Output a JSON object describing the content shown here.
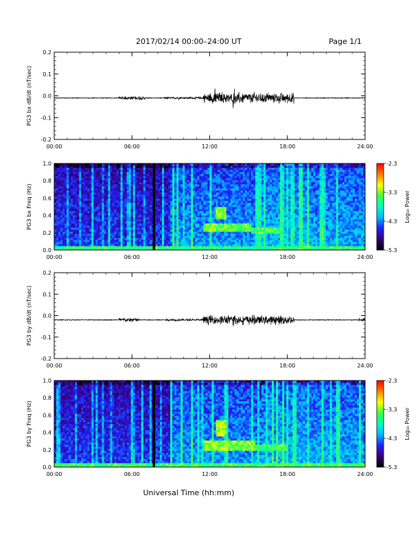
{
  "header": {
    "title": "2017/02/14  00:00–24:00 UT",
    "page": "Page 1/1"
  },
  "footer": {
    "xlabel": "Universal Time (hh:mm)"
  },
  "colorbar": {
    "label": "Log₁₀ Power",
    "ticks": [
      "-2.3",
      "-3.3",
      "-4.3",
      "-5.3"
    ],
    "colors": [
      "#000000",
      "#3a0078",
      "#2020ff",
      "#00b8ff",
      "#00ffc8",
      "#40ff40",
      "#ffff00",
      "#ff8000",
      "#ff0000"
    ]
  },
  "chart_data": [
    {
      "type": "line",
      "ylabel": "PG3 bx dB/dt (nT/sec)",
      "ylim": [
        -0.2,
        0.2
      ],
      "yticks": [
        "0.2",
        "0.1",
        "0.0",
        "-0.1",
        "-0.2"
      ],
      "xlim": [
        0,
        24
      ],
      "xticks": [
        "00:00",
        "06:00",
        "12:00",
        "18:00",
        "24:00"
      ],
      "baseline": -0.01,
      "activity": [
        {
          "x": [
            5.0,
            7.0
          ],
          "amplitude": 0.01
        },
        {
          "x": [
            8.5,
            11.5
          ],
          "amplitude": 0.006
        },
        {
          "x": [
            11.5,
            18.5
          ],
          "amplitude": 0.03
        },
        {
          "x": [
            12.3,
            12.5
          ],
          "amplitude": 0.05
        },
        {
          "x": [
            13.8,
            14.0
          ],
          "amplitude": 0.06
        }
      ],
      "color": "#000000"
    },
    {
      "type": "heatmap",
      "ylabel": "PG3 bx Freq (Hz)",
      "ylim": [
        0.0,
        1.0
      ],
      "yticks": [
        "1.0",
        "0.8",
        "0.6",
        "0.4",
        "0.2",
        "0.0"
      ],
      "xlim": [
        0,
        24
      ],
      "xticks": [
        "00:00",
        "06:00",
        "12:00",
        "18:00",
        "24:00"
      ],
      "zlim": [
        -5.3,
        -2.3
      ],
      "gap_x": 7.7,
      "features": [
        {
          "x": [
            11.5,
            15.2
          ],
          "freq": [
            0.22,
            0.3
          ],
          "level": -3.4
        },
        {
          "x": [
            12.5,
            13.3
          ],
          "freq": [
            0.35,
            0.5
          ],
          "level": -3.3
        },
        {
          "x": [
            15.2,
            17.5
          ],
          "freq": [
            0.2,
            0.26
          ],
          "level": -3.5
        },
        {
          "x": [
            0.0,
            24.0
          ],
          "freq": [
            0.0,
            0.04
          ],
          "level": -3.6
        }
      ]
    },
    {
      "type": "line",
      "ylabel": "PG3 by dB/dt (nT/sec)",
      "ylim": [
        -0.2,
        0.2
      ],
      "yticks": [
        "0.2",
        "0.1",
        "0.0",
        "-0.1",
        "-0.2"
      ],
      "xlim": [
        0,
        24
      ],
      "xticks": [
        "00:00",
        "06:00",
        "12:00",
        "18:00",
        "24:00"
      ],
      "baseline": -0.02,
      "activity": [
        {
          "x": [
            5.0,
            6.5
          ],
          "amplitude": 0.012
        },
        {
          "x": [
            8.5,
            11.5
          ],
          "amplitude": 0.006
        },
        {
          "x": [
            11.5,
            18.5
          ],
          "amplitude": 0.025
        },
        {
          "x": [
            13.8,
            14.0
          ],
          "amplitude": 0.05
        },
        {
          "x": [
            23.5,
            24.0
          ],
          "amplitude": 0.01
        }
      ],
      "color": "#000000"
    },
    {
      "type": "heatmap",
      "ylabel": "PG3 by Freq (Hz)",
      "ylim": [
        0.0,
        1.0
      ],
      "yticks": [
        "1.0",
        "0.8",
        "0.6",
        "0.4",
        "0.2",
        "0.0"
      ],
      "xlim": [
        0,
        24
      ],
      "xticks": [
        "00:00",
        "06:00",
        "12:00",
        "18:00",
        "24:00"
      ],
      "zlim": [
        -5.3,
        -2.3
      ],
      "gap_x": 7.7,
      "features": [
        {
          "x": [
            11.5,
            15.5
          ],
          "freq": [
            0.2,
            0.3
          ],
          "level": -3.3
        },
        {
          "x": [
            12.5,
            13.3
          ],
          "freq": [
            0.35,
            0.55
          ],
          "level": -3.2
        },
        {
          "x": [
            15.5,
            18.0
          ],
          "freq": [
            0.18,
            0.25
          ],
          "level": -3.5
        },
        {
          "x": [
            0.0,
            24.0
          ],
          "freq": [
            0.0,
            0.04
          ],
          "level": -3.5
        }
      ]
    }
  ]
}
